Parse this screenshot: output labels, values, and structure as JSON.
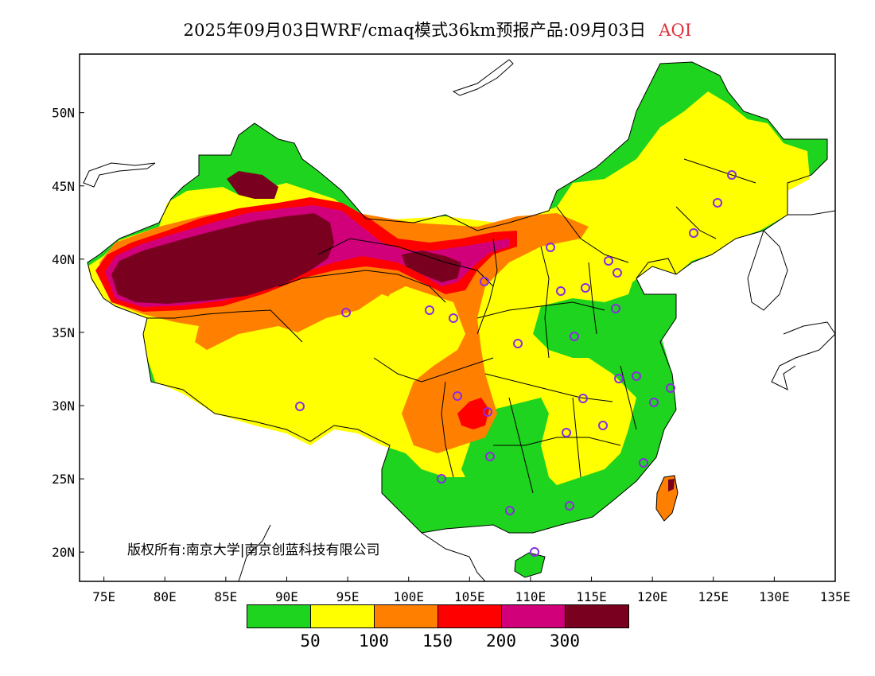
{
  "header": {
    "title": "2025年09月03日WRF/cmaq模式36km预报产品:09月03日",
    "variable": "AQI",
    "variable_color": "#e0303a"
  },
  "map": {
    "lon_labels": [
      "75E",
      "80E",
      "85E",
      "90E",
      "95E",
      "100E",
      "105E",
      "110E",
      "115E",
      "120E",
      "125E",
      "130E",
      "135E"
    ],
    "lat_labels": [
      "20N",
      "25N",
      "30N",
      "35N",
      "40N",
      "45N",
      "50N"
    ],
    "lon_range": [
      73,
      135
    ],
    "lat_range": [
      18,
      54
    ],
    "copyright": "版权所有:南京大学|南京创蓝科技有限公司"
  },
  "legend": {
    "colors": [
      "#1ed41e",
      "#ffff00",
      "#ff8000",
      "#ff0000",
      "#d1007a",
      "#7a0020"
    ],
    "labels": [
      "50",
      "100",
      "150",
      "200",
      "300"
    ]
  },
  "colors": {
    "ocean": "#ffffff",
    "border": "#000000",
    "station_marker": "#8a2be2"
  }
}
